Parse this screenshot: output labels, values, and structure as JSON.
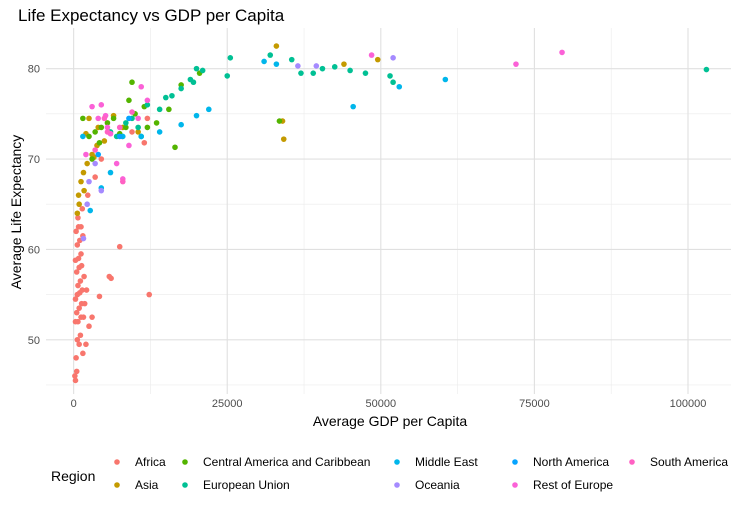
{
  "chart_data": {
    "type": "scatter",
    "title": "Life Expectancy vs GDP per Capita",
    "xlabel": "Average GDP per Capita",
    "ylabel": "Average Life Expectancy",
    "xlim": [
      -4500,
      107000
    ],
    "ylim": [
      44,
      84.5
    ],
    "x_ticks": [
      0,
      25000,
      50000,
      75000,
      100000
    ],
    "y_ticks": [
      50,
      60,
      70,
      80
    ],
    "x_minor": [
      12500,
      37500,
      62500,
      87500
    ],
    "y_minor": [
      45,
      55,
      65,
      75
    ],
    "grid": true,
    "legend_title": "Region",
    "legend_position": "bottom",
    "series": [
      {
        "name": "Africa",
        "color": "#F8766D",
        "points": [
          [
            200,
            46.0
          ],
          [
            300,
            45.5
          ],
          [
            500,
            46.5
          ],
          [
            400,
            48.0
          ],
          [
            900,
            49.5
          ],
          [
            1500,
            48.5
          ],
          [
            2000,
            49.5
          ],
          [
            600,
            50.0
          ],
          [
            1100,
            50.5
          ],
          [
            2500,
            51.5
          ],
          [
            300,
            52.0
          ],
          [
            700,
            52.0
          ],
          [
            1200,
            52.5
          ],
          [
            1600,
            52.5
          ],
          [
            3000,
            52.5
          ],
          [
            500,
            53.0
          ],
          [
            900,
            53.5
          ],
          [
            1300,
            54.0
          ],
          [
            1800,
            54.0
          ],
          [
            4200,
            54.8
          ],
          [
            300,
            54.5
          ],
          [
            600,
            55.0
          ],
          [
            1000,
            55.2
          ],
          [
            1400,
            55.5
          ],
          [
            2100,
            55.5
          ],
          [
            12300,
            55.0
          ],
          [
            700,
            56.0
          ],
          [
            1100,
            56.5
          ],
          [
            1700,
            57.0
          ],
          [
            5800,
            57.0
          ],
          [
            6100,
            56.8
          ],
          [
            500,
            57.5
          ],
          [
            900,
            58.0
          ],
          [
            1300,
            58.2
          ],
          [
            300,
            58.8
          ],
          [
            800,
            59.0
          ],
          [
            1200,
            59.5
          ],
          [
            7500,
            60.3
          ],
          [
            600,
            60.5
          ],
          [
            1000,
            61.0
          ],
          [
            1500,
            61.5
          ],
          [
            400,
            62.0
          ],
          [
            800,
            62.5
          ],
          [
            1200,
            62.5
          ],
          [
            700,
            63.5
          ],
          [
            1400,
            64.5
          ],
          [
            2300,
            66.0
          ],
          [
            3500,
            68.0
          ],
          [
            4500,
            70.0
          ],
          [
            7900,
            72.5
          ],
          [
            11500,
            71.8
          ],
          [
            9500,
            73.0
          ],
          [
            12000,
            74.5
          ]
        ]
      },
      {
        "name": "Asia",
        "color": "#C49A00",
        "points": [
          [
            800,
            66.0
          ],
          [
            1200,
            67.5
          ],
          [
            1600,
            68.5
          ],
          [
            2200,
            69.5
          ],
          [
            3000,
            70.5
          ],
          [
            3800,
            71.5
          ],
          [
            5000,
            72.0
          ],
          [
            2500,
            74.5
          ],
          [
            4000,
            73.5
          ],
          [
            8000,
            73.5
          ],
          [
            900,
            65.0
          ],
          [
            1700,
            66.5
          ],
          [
            600,
            64.0
          ],
          [
            3300,
            70.2
          ],
          [
            2000,
            72.8
          ],
          [
            6500,
            74.8
          ],
          [
            10500,
            73.0
          ],
          [
            34000,
            74.2
          ],
          [
            34200,
            72.2
          ],
          [
            33000,
            82.5
          ],
          [
            44000,
            80.5
          ],
          [
            49500,
            81.0
          ]
        ]
      },
      {
        "name": "Central America and Caribbean",
        "color": "#53B400",
        "points": [
          [
            2500,
            72.5
          ],
          [
            3500,
            73.0
          ],
          [
            4500,
            73.5
          ],
          [
            5500,
            74.0
          ],
          [
            6500,
            74.5
          ],
          [
            7500,
            72.8
          ],
          [
            8500,
            73.5
          ],
          [
            9000,
            76.5
          ],
          [
            10000,
            75.0
          ],
          [
            11500,
            75.8
          ],
          [
            13500,
            74.0
          ],
          [
            15500,
            75.5
          ],
          [
            16500,
            71.3
          ],
          [
            17500,
            78.2
          ],
          [
            20500,
            79.5
          ],
          [
            1500,
            74.5
          ],
          [
            4200,
            71.8
          ],
          [
            3000,
            70.0
          ],
          [
            9500,
            78.5
          ],
          [
            12000,
            73.5
          ],
          [
            33500,
            74.2
          ]
        ]
      },
      {
        "name": "European Union",
        "color": "#00C094",
        "points": [
          [
            6000,
            73.0
          ],
          [
            7000,
            72.5
          ],
          [
            8500,
            74.0
          ],
          [
            9500,
            74.5
          ],
          [
            10500,
            73.5
          ],
          [
            11000,
            72.5
          ],
          [
            12000,
            76.0
          ],
          [
            14000,
            75.5
          ],
          [
            15000,
            76.8
          ],
          [
            16000,
            77.0
          ],
          [
            17500,
            77.8
          ],
          [
            19000,
            78.8
          ],
          [
            19500,
            78.5
          ],
          [
            21000,
            79.8
          ],
          [
            25000,
            79.2
          ],
          [
            25500,
            81.2
          ],
          [
            32000,
            81.5
          ],
          [
            35500,
            81.0
          ],
          [
            37000,
            79.5
          ],
          [
            39000,
            79.5
          ],
          [
            40500,
            80.0
          ],
          [
            42500,
            80.2
          ],
          [
            45000,
            79.8
          ],
          [
            47500,
            79.5
          ],
          [
            51500,
            79.2
          ],
          [
            52000,
            78.5
          ],
          [
            103000,
            79.9
          ],
          [
            20000,
            80.0
          ]
        ]
      },
      {
        "name": "Middle East",
        "color": "#00B6EB",
        "points": [
          [
            2700,
            64.3
          ],
          [
            4500,
            66.8
          ],
          [
            6000,
            68.5
          ],
          [
            8000,
            72.5
          ],
          [
            11000,
            72.5
          ],
          [
            14000,
            73.0
          ],
          [
            17500,
            73.8
          ],
          [
            20000,
            74.8
          ],
          [
            22000,
            75.5
          ],
          [
            31000,
            80.8
          ],
          [
            33000,
            80.5
          ],
          [
            45500,
            75.8
          ],
          [
            53000,
            78.0
          ],
          [
            60500,
            78.8
          ],
          [
            1500,
            72.5
          ]
        ]
      },
      {
        "name": "Oceania",
        "color": "#A58AFF",
        "points": [
          [
            1600,
            61.2
          ],
          [
            2200,
            65.0
          ],
          [
            2500,
            67.5
          ],
          [
            3500,
            69.5
          ],
          [
            4500,
            66.5
          ],
          [
            36500,
            80.3
          ],
          [
            39500,
            80.3
          ],
          [
            52000,
            81.2
          ]
        ]
      },
      {
        "name": "North America",
        "color": "#06A4FF",
        "points": [
          [
            4000,
            70.5
          ],
          [
            7500,
            72.5
          ],
          [
            9000,
            74.5
          ]
        ]
      },
      {
        "name": "Rest of Europe",
        "color": "#FB61D7",
        "points": [
          [
            2000,
            70.5
          ],
          [
            3000,
            75.8
          ],
          [
            4000,
            74.5
          ],
          [
            4500,
            76.0
          ],
          [
            5200,
            74.8
          ],
          [
            5500,
            73.5
          ],
          [
            6000,
            72.8
          ],
          [
            7000,
            69.5
          ],
          [
            8000,
            67.8
          ],
          [
            9000,
            71.5
          ],
          [
            10500,
            74.5
          ],
          [
            11000,
            78.0
          ],
          [
            12000,
            76.5
          ],
          [
            48500,
            81.5
          ],
          [
            72000,
            80.5
          ],
          [
            79500,
            81.8
          ]
        ]
      },
      {
        "name": "South America",
        "color": "#FF61C3",
        "points": [
          [
            3500,
            71.0
          ],
          [
            5000,
            74.5
          ],
          [
            7500,
            73.5
          ],
          [
            9500,
            75.2
          ],
          [
            8000,
            67.5
          ],
          [
            5500,
            73.0
          ]
        ]
      }
    ]
  }
}
